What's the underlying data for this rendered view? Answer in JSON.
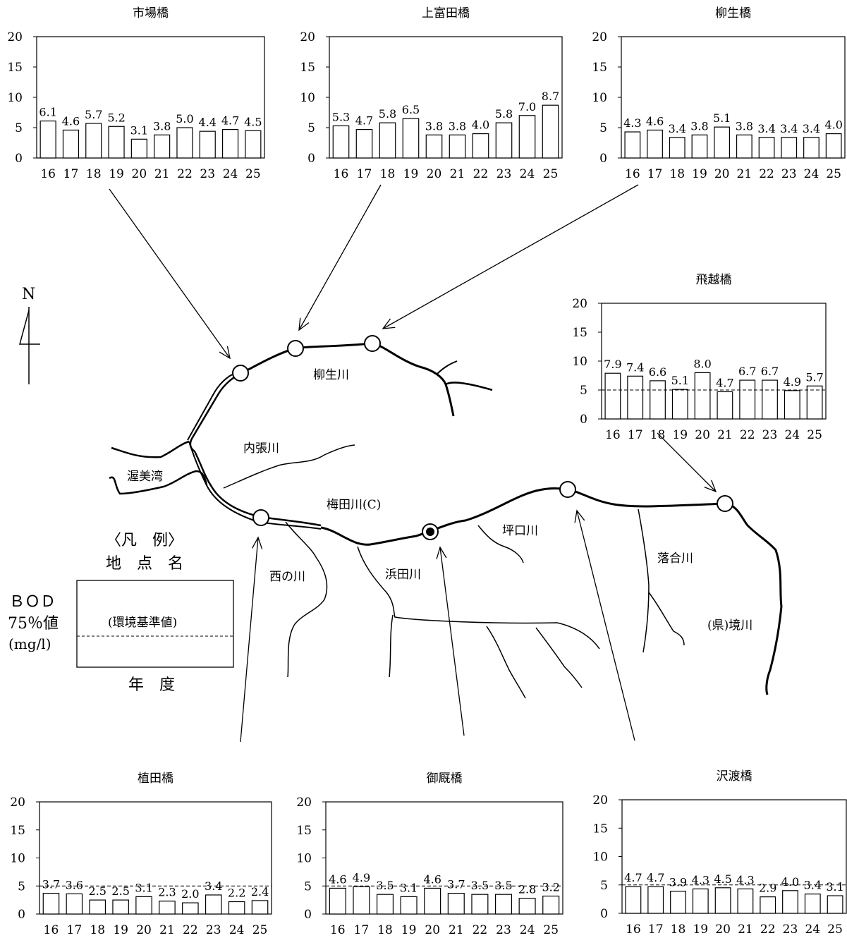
{
  "river_labels": {
    "yagyu": "柳生川",
    "uchihari": "内張川",
    "atsumi": "渥美湾",
    "umeda": "梅田川(C)",
    "nishi": "西の川",
    "hamada": "浜田川",
    "tsuboguchi": "坪口川",
    "ochiai": "落合川",
    "sakai": "(県)境川"
  },
  "north": "N",
  "legend": {
    "title": "〈凡　例〉",
    "station": "地　点　名",
    "standard": "(環境基準値)",
    "year": "年　度",
    "ylabel_line1": "ＢＯＤ",
    "ylabel_line2": "75％値",
    "ylabel_line3": "(mg/l)"
  },
  "chart_data": [
    {
      "type": "bar",
      "title": "市場橋",
      "categories": [
        "16",
        "17",
        "18",
        "19",
        "20",
        "21",
        "22",
        "23",
        "24",
        "25"
      ],
      "values": [
        6.1,
        4.6,
        5.7,
        5.2,
        3.1,
        3.8,
        5.0,
        4.4,
        4.7,
        4.5
      ],
      "ylim": [
        0,
        20
      ],
      "yticks": [
        0,
        5,
        10,
        15,
        20
      ],
      "standard": null
    },
    {
      "type": "bar",
      "title": "上富田橋",
      "categories": [
        "16",
        "17",
        "18",
        "19",
        "20",
        "21",
        "22",
        "23",
        "24",
        "25"
      ],
      "values": [
        5.3,
        4.7,
        5.8,
        6.5,
        3.8,
        3.8,
        4.0,
        5.8,
        7.0,
        8.7
      ],
      "ylim": [
        0,
        20
      ],
      "yticks": [
        0,
        5,
        10,
        15,
        20
      ],
      "standard": null
    },
    {
      "type": "bar",
      "title": "柳生橋",
      "categories": [
        "16",
        "17",
        "18",
        "19",
        "20",
        "21",
        "22",
        "23",
        "24",
        "25"
      ],
      "values": [
        4.3,
        4.6,
        3.4,
        3.8,
        5.1,
        3.8,
        3.4,
        3.4,
        3.4,
        4.0
      ],
      "ylim": [
        0,
        20
      ],
      "yticks": [
        0,
        5,
        10,
        15,
        20
      ],
      "standard": null
    },
    {
      "type": "bar",
      "title": "飛越橋",
      "categories": [
        "16",
        "17",
        "18",
        "19",
        "20",
        "21",
        "22",
        "23",
        "24",
        "25"
      ],
      "values": [
        7.9,
        7.4,
        6.6,
        5.1,
        8.0,
        4.7,
        6.7,
        6.7,
        4.9,
        5.7
      ],
      "ylim": [
        0,
        20
      ],
      "yticks": [
        0,
        5,
        10,
        15,
        20
      ],
      "standard": 5
    },
    {
      "type": "bar",
      "title": "植田橋",
      "categories": [
        "16",
        "17",
        "18",
        "19",
        "20",
        "21",
        "22",
        "23",
        "24",
        "25"
      ],
      "values": [
        3.7,
        3.6,
        2.5,
        2.5,
        3.1,
        2.3,
        2.0,
        3.4,
        2.2,
        2.4
      ],
      "ylim": [
        0,
        20
      ],
      "yticks": [
        0,
        5,
        10,
        15,
        20
      ],
      "standard": 5
    },
    {
      "type": "bar",
      "title": "御厩橋",
      "categories": [
        "16",
        "17",
        "18",
        "19",
        "20",
        "21",
        "22",
        "23",
        "24",
        "25"
      ],
      "values": [
        4.6,
        4.9,
        3.5,
        3.1,
        4.6,
        3.7,
        3.5,
        3.5,
        2.8,
        3.2
      ],
      "ylim": [
        0,
        20
      ],
      "yticks": [
        0,
        5,
        10,
        15,
        20
      ],
      "standard": 5
    },
    {
      "type": "bar",
      "title": "沢渡橋",
      "categories": [
        "16",
        "17",
        "18",
        "19",
        "20",
        "21",
        "22",
        "23",
        "24",
        "25"
      ],
      "values": [
        4.7,
        4.7,
        3.9,
        4.3,
        4.5,
        4.3,
        2.9,
        4.0,
        3.4,
        3.1
      ],
      "ylim": [
        0,
        20
      ],
      "yticks": [
        0,
        5,
        10,
        15,
        20
      ],
      "standard": 5
    }
  ]
}
